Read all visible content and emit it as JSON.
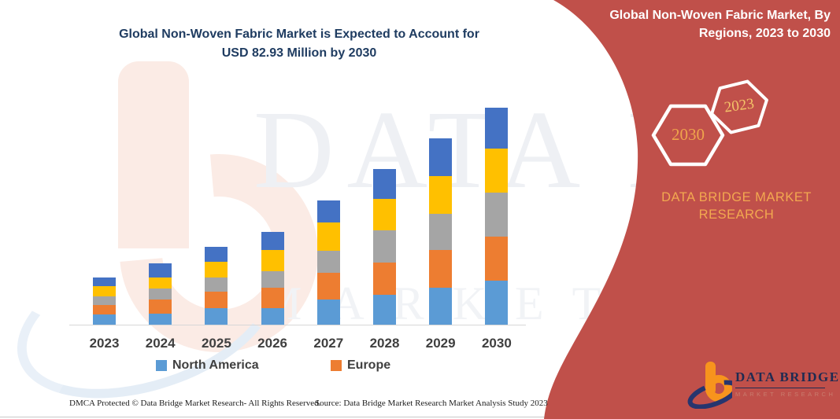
{
  "title": {
    "line1": "Global Non-Woven Fabric Market is Expected to Account for",
    "line2": "USD 82.93 Million by 2030",
    "color": "#1f3c61"
  },
  "banner": {
    "heading_line1": "Global Non-Woven Fabric Market, By",
    "heading_line2": "Regions, 2023 to 2030",
    "background_color": "#c0504a",
    "hexagon_large_label": "2030",
    "hexagon_small_label": "2023",
    "brand_line1": "DATA BRIDGE MARKET",
    "brand_line2": "RESEARCH",
    "brand_color": "#f2a850"
  },
  "watermark": {
    "line1": "DATA BRIDGE",
    "line2": "MARKET RESEARCH"
  },
  "logo": {
    "name": "DATA BRIDGE",
    "subtitle": "MARKET RESEARCH"
  },
  "footer": {
    "left": "DMCA Protected © Data Bridge Market Research-  All Rights Reserved.",
    "right": "Source: Data Bridge Market Research  Market Analysis Study 2023"
  },
  "chart_data": {
    "type": "bar",
    "stacked": true,
    "title": "Global Non-Woven Fabric Market is Expected to Account for USD 82.93 Million by 2030",
    "units": "USD Million",
    "grid": false,
    "legend_position": "bottom",
    "categories": [
      "2023",
      "2024",
      "2025",
      "2026",
      "2027",
      "2028",
      "2029",
      "2030"
    ],
    "series": [
      {
        "name": "North America",
        "color": "#5B9BD5",
        "values": [
          3.9,
          4.3,
          6.3,
          6.4,
          9.7,
          11.5,
          14.2,
          16.7
        ]
      },
      {
        "name": "Europe",
        "color": "#ED7D31",
        "values": [
          3.5,
          5.2,
          6.2,
          7.8,
          10.0,
          12.2,
          14.3,
          16.9
        ]
      },
      {
        "name": "(unlabeled gray series)",
        "color": "#A5A5A5",
        "values": [
          3.5,
          4.2,
          5.4,
          6.3,
          8.5,
          12.5,
          14.0,
          16.8
        ]
      },
      {
        "name": "(unlabeled yellow series)",
        "color": "#FFC000",
        "values": [
          3.7,
          4.3,
          6.0,
          8.0,
          10.8,
          12.0,
          14.4,
          16.8
        ]
      },
      {
        "name": "(unlabeled dark-blue series)",
        "color": "#4472C4",
        "values": [
          3.4,
          5.5,
          5.9,
          7.1,
          8.5,
          11.3,
          14.4,
          15.73
        ]
      }
    ],
    "totals": [
      18.0,
      23.5,
      29.8,
      35.6,
      47.5,
      59.5,
      71.3,
      82.93
    ],
    "legend": [
      {
        "label": "North America",
        "color": "#5B9BD5"
      },
      {
        "label": "Europe",
        "color": "#ED7D31"
      }
    ]
  }
}
